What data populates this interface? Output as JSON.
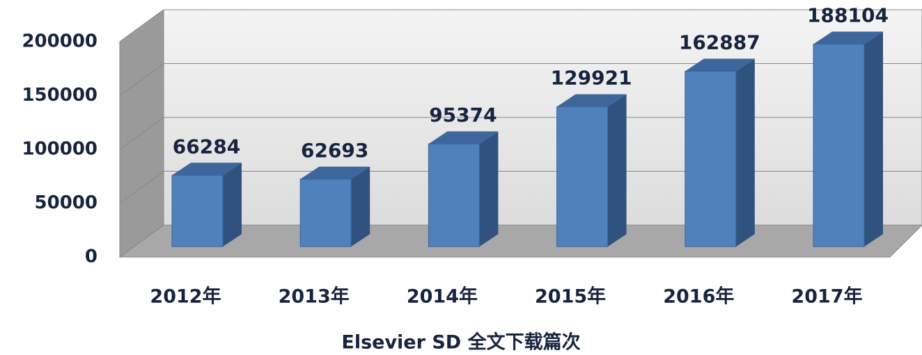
{
  "chart_data": {
    "type": "bar3d",
    "title": "Elsevier SD 全文下载篇次",
    "categories": [
      "2012年",
      "2013年",
      "2014年",
      "2015年",
      "2016年",
      "2017年"
    ],
    "values": [
      66284,
      62693,
      95374,
      129921,
      162887,
      188104
    ],
    "color": "#4f81bd",
    "ylim": [
      0,
      200000
    ],
    "yticks": [
      0,
      50000,
      100000,
      150000,
      200000
    ],
    "grid": true
  }
}
